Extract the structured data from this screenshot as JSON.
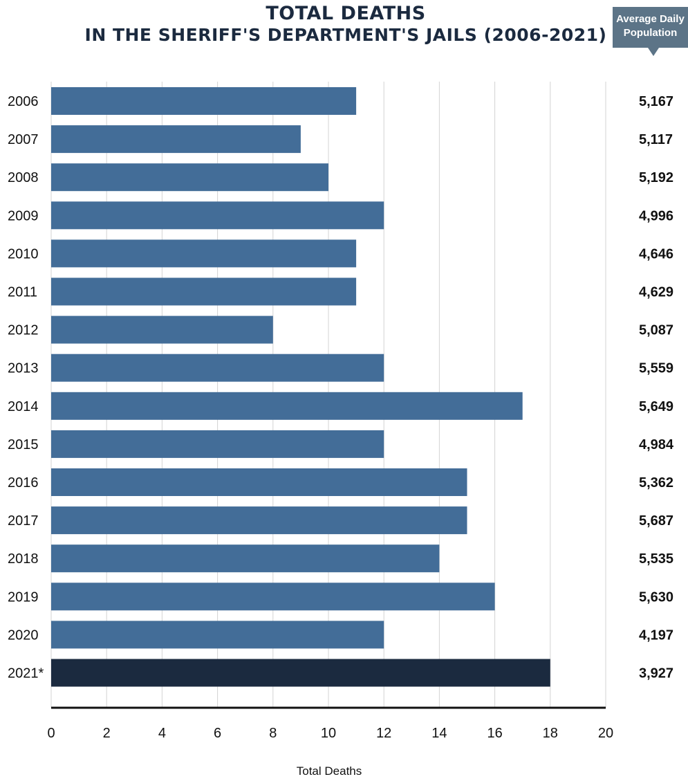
{
  "chart_data": {
    "type": "bar",
    "orientation": "horizontal",
    "title_line1": "Total Deaths",
    "title_line2": "in the Sheriff's Department's Jails (2006-2021)",
    "side_header_line1": "Average Daily",
    "side_header_line2": "Population",
    "xlabel": "Total Deaths",
    "xlim": [
      0,
      20
    ],
    "xticks": [
      "0",
      "2",
      "4",
      "6",
      "8",
      "10",
      "12",
      "14",
      "16",
      "18",
      "20"
    ],
    "grid": "vertical",
    "categories": [
      "2006",
      "2007",
      "2008",
      "2009",
      "2010",
      "2011",
      "2012",
      "2013",
      "2014",
      "2015",
      "2016",
      "2017",
      "2018",
      "2019",
      "2020",
      "2021*"
    ],
    "values": [
      11,
      9,
      10,
      12,
      11,
      11,
      8,
      12,
      17,
      12,
      15,
      15,
      14,
      16,
      12,
      18
    ],
    "average_daily_population": [
      "5,167",
      "5,117",
      "5,192",
      "4,996",
      "4,646",
      "4,629",
      "5,087",
      "5,559",
      "5,649",
      "4,984",
      "5,362",
      "5,687",
      "5,535",
      "5,630",
      "4,197",
      "3,927"
    ],
    "colors": {
      "bar": "#436d98",
      "highlight_bar": "#1b2a3f",
      "header_box": "#5c7487",
      "grid": "#d3d3d3",
      "axis": "#111111"
    },
    "highlight_category": "2021*"
  }
}
